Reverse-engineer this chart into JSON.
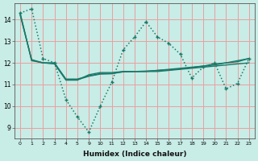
{
  "background_color": "#c8ece6",
  "grid_color": "#e8a0a0",
  "line_color": "#1a7a6a",
  "xlabel": "Humidex (Indice chaleur)",
  "ylim": [
    8.5,
    14.75
  ],
  "yticks": [
    9,
    10,
    11,
    12,
    13,
    14
  ],
  "xlabels": [
    "0",
    "1",
    "2",
    "3",
    "4",
    "5",
    "9",
    "10",
    "11",
    "12",
    "13",
    "14",
    "15",
    "16",
    "17",
    "18",
    "19",
    "20",
    "21",
    "22",
    "23"
  ],
  "series": [
    {
      "y": [
        14.3,
        14.5,
        12.2,
        12.0,
        10.3,
        9.5,
        8.8,
        10.0,
        11.1,
        12.6,
        13.2,
        13.9,
        13.2,
        12.9,
        12.4,
        11.3,
        11.8,
        12.0,
        10.8,
        11.05,
        12.2
      ],
      "style": "dotted",
      "marker": "+"
    },
    {
      "y": [
        14.3,
        12.1,
        12.0,
        11.95,
        11.2,
        11.2,
        11.45,
        11.55,
        11.55,
        11.6,
        11.6,
        11.6,
        11.6,
        11.65,
        11.7,
        11.75,
        11.8,
        11.85,
        11.9,
        11.95,
        12.0
      ],
      "style": "solid",
      "marker": null
    },
    {
      "y": [
        14.2,
        12.15,
        12.0,
        12.0,
        11.25,
        11.25,
        11.4,
        11.5,
        11.5,
        11.6,
        11.6,
        11.6,
        11.65,
        11.7,
        11.75,
        11.8,
        11.85,
        11.9,
        12.0,
        12.05,
        12.2
      ],
      "style": "solid",
      "marker": null
    },
    {
      "y": [
        14.25,
        12.12,
        12.0,
        11.98,
        11.22,
        11.22,
        11.38,
        11.48,
        11.5,
        11.58,
        11.6,
        11.62,
        11.65,
        11.68,
        11.72,
        11.78,
        11.85,
        11.95,
        12.0,
        12.1,
        12.2
      ],
      "style": "solid",
      "marker": null
    }
  ]
}
